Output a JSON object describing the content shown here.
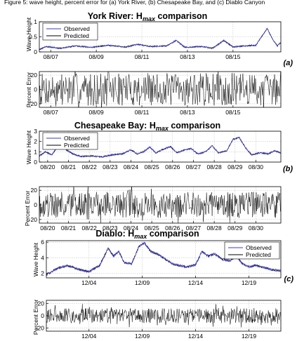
{
  "figure_header": "Figure 5: wave height, percent error for (a) York River, (b) Chesapeake Bay, and (c) Diablo Canyon",
  "chart_data": [
    {
      "id": "york-height",
      "type": "line",
      "title": "York River: H",
      "title_sub": "max",
      "title_tail": " comparison",
      "ylabel": "Wave Height",
      "ylim": [
        0,
        1
      ],
      "yticks": [
        0,
        0.5,
        1
      ],
      "xlim": [
        0,
        10.6
      ],
      "xticks": [
        {
          "x": 0.5,
          "label": "08/07"
        },
        {
          "x": 2.5,
          "label": "08/09"
        },
        {
          "x": 4.5,
          "label": "08/11"
        },
        {
          "x": 6.5,
          "label": "08/13"
        },
        {
          "x": 8.5,
          "label": "08/15"
        }
      ],
      "legend": "top-left",
      "series": [
        {
          "name": "Observed",
          "color": "#3a3ad6"
        },
        {
          "name": "Predicted",
          "color": "#000000"
        }
      ],
      "key_points": [
        [
          0,
          0.08
        ],
        [
          0.3,
          0.18
        ],
        [
          0.9,
          0.12
        ],
        [
          1.6,
          0.2
        ],
        [
          2.3,
          0.15
        ],
        [
          3.0,
          0.22
        ],
        [
          3.8,
          0.16
        ],
        [
          4.3,
          0.25
        ],
        [
          4.9,
          0.18
        ],
        [
          5.6,
          0.2
        ],
        [
          6.0,
          0.38
        ],
        [
          6.4,
          0.15
        ],
        [
          7.1,
          0.18
        ],
        [
          7.6,
          0.12
        ],
        [
          8.1,
          0.38
        ],
        [
          8.5,
          0.16
        ],
        [
          9.0,
          0.2
        ],
        [
          9.5,
          0.22
        ],
        [
          9.8,
          0.55
        ],
        [
          10.0,
          0.78
        ],
        [
          10.25,
          0.4
        ],
        [
          10.45,
          0.2
        ],
        [
          10.6,
          0.32
        ]
      ],
      "noise": 0.025,
      "label": "(a)"
    },
    {
      "id": "york-error",
      "type": "line",
      "ylabel": "Percent Error",
      "ylim": [
        -25,
        25
      ],
      "yticks": [
        -20,
        0,
        20
      ],
      "xlim": [
        0,
        10.6
      ],
      "xticks": [
        {
          "x": 0.5,
          "label": "08/07"
        },
        {
          "x": 2.5,
          "label": "08/09"
        },
        {
          "x": 4.5,
          "label": "08/11"
        },
        {
          "x": 6.5,
          "label": "08/13"
        },
        {
          "x": 8.5,
          "label": "08/15"
        }
      ],
      "color": "#000000",
      "samples": 420,
      "amplitude": 23,
      "seed": 7
    },
    {
      "id": "chesapeake-height",
      "type": "line",
      "title": "Chesapeake Bay: H",
      "title_sub": "max",
      "title_tail": " comparison",
      "ylabel": "Wave Height",
      "ylim": [
        0,
        3
      ],
      "yticks": [
        0,
        1,
        2,
        3
      ],
      "xlim": [
        0,
        11.6
      ],
      "xticks": [
        {
          "x": 0.4,
          "label": "08/20"
        },
        {
          "x": 1.4,
          "label": "08/21"
        },
        {
          "x": 2.4,
          "label": "08/22"
        },
        {
          "x": 3.4,
          "label": "08/23"
        },
        {
          "x": 4.4,
          "label": "08/24"
        },
        {
          "x": 5.4,
          "label": "08/25"
        },
        {
          "x": 6.4,
          "label": "08/26"
        },
        {
          "x": 7.4,
          "label": "08/27"
        },
        {
          "x": 8.4,
          "label": "08/28"
        },
        {
          "x": 9.4,
          "label": "08/29"
        },
        {
          "x": 10.4,
          "label": "08/30"
        }
      ],
      "legend": "top-left",
      "series": [
        {
          "name": "Observed",
          "color": "#3a3ad6"
        },
        {
          "name": "Predicted",
          "color": "#000000"
        }
      ],
      "key_points": [
        [
          0,
          0.6
        ],
        [
          0.3,
          1.0
        ],
        [
          0.6,
          0.7
        ],
        [
          0.9,
          1.5
        ],
        [
          1.1,
          1.8
        ],
        [
          1.3,
          1.2
        ],
        [
          1.6,
          0.8
        ],
        [
          2.0,
          0.55
        ],
        [
          2.5,
          0.6
        ],
        [
          3.0,
          0.5
        ],
        [
          3.5,
          0.7
        ],
        [
          4.0,
          0.8
        ],
        [
          4.4,
          1.2
        ],
        [
          4.7,
          0.8
        ],
        [
          5.0,
          1.0
        ],
        [
          5.3,
          1.45
        ],
        [
          5.6,
          0.9
        ],
        [
          6.0,
          1.3
        ],
        [
          6.3,
          1.5
        ],
        [
          6.6,
          0.9
        ],
        [
          7.0,
          1.2
        ],
        [
          7.3,
          1.3
        ],
        [
          7.6,
          0.8
        ],
        [
          8.0,
          1.0
        ],
        [
          8.3,
          1.6
        ],
        [
          8.6,
          0.9
        ],
        [
          9.0,
          1.1
        ],
        [
          9.3,
          2.2
        ],
        [
          9.6,
          2.4
        ],
        [
          9.9,
          1.4
        ],
        [
          10.2,
          0.7
        ],
        [
          10.6,
          0.9
        ],
        [
          11.0,
          0.8
        ],
        [
          11.3,
          1.1
        ],
        [
          11.6,
          0.9
        ]
      ],
      "noise": 0.08,
      "label": "(b)"
    },
    {
      "id": "chesapeake-error",
      "type": "line",
      "ylabel": "Percent Error",
      "ylim": [
        -25,
        25
      ],
      "yticks": [
        -20,
        0,
        20
      ],
      "xlim": [
        0,
        11.6
      ],
      "xticks": [
        {
          "x": 0.4,
          "label": "08/20"
        },
        {
          "x": 1.4,
          "label": "08/21"
        },
        {
          "x": 2.4,
          "label": "08/22"
        },
        {
          "x": 3.4,
          "label": "08/23"
        },
        {
          "x": 4.4,
          "label": "08/24"
        },
        {
          "x": 5.4,
          "label": "08/25"
        },
        {
          "x": 6.4,
          "label": "08/26"
        },
        {
          "x": 7.4,
          "label": "08/27"
        },
        {
          "x": 8.4,
          "label": "08/28"
        },
        {
          "x": 9.4,
          "label": "08/29"
        },
        {
          "x": 10.4,
          "label": "08/30"
        }
      ],
      "color": "#000000",
      "samples": 520,
      "amplitude": 18,
      "seed": 19
    },
    {
      "id": "diablo-height",
      "type": "line",
      "title": "Diablo: H",
      "title_sub": "max",
      "title_tail": " comparison",
      "ylabel": "Wave Height",
      "ylim": [
        1.4,
        6.2
      ],
      "yticks": [
        2,
        4,
        6
      ],
      "xlim": [
        0,
        22
      ],
      "xticks": [
        {
          "x": 4.0,
          "label": "12/04"
        },
        {
          "x": 9.0,
          "label": "12/09"
        },
        {
          "x": 14.0,
          "label": "12/14"
        },
        {
          "x": 19.0,
          "label": "12/19"
        }
      ],
      "legend": "top-right",
      "series": [
        {
          "name": "Observed",
          "color": "#3a3ad6"
        },
        {
          "name": "Predicted",
          "color": "#000000"
        }
      ],
      "key_points": [
        [
          0,
          1.8
        ],
        [
          1.0,
          2.6
        ],
        [
          2.0,
          3.0
        ],
        [
          3.0,
          2.5
        ],
        [
          4.0,
          2.2
        ],
        [
          5.0,
          3.0
        ],
        [
          5.8,
          5.2
        ],
        [
          6.3,
          4.2
        ],
        [
          6.8,
          4.8
        ],
        [
          7.3,
          3.4
        ],
        [
          8.0,
          3.2
        ],
        [
          8.7,
          5.5
        ],
        [
          9.2,
          5.9
        ],
        [
          9.8,
          4.8
        ],
        [
          10.5,
          4.4
        ],
        [
          11.2,
          3.8
        ],
        [
          11.8,
          3.2
        ],
        [
          12.5,
          3.0
        ],
        [
          13.2,
          2.8
        ],
        [
          14.0,
          3.1
        ],
        [
          14.6,
          4.8
        ],
        [
          15.2,
          4.2
        ],
        [
          15.8,
          4.5
        ],
        [
          16.5,
          3.8
        ],
        [
          17.2,
          3.6
        ],
        [
          17.8,
          4.2
        ],
        [
          18.4,
          3.2
        ],
        [
          19.0,
          2.8
        ],
        [
          19.6,
          3.0
        ],
        [
          20.3,
          2.8
        ],
        [
          21.0,
          2.5
        ],
        [
          22.0,
          2.3
        ]
      ],
      "noise": 0.16,
      "label": "(c)"
    },
    {
      "id": "diablo-error",
      "type": "line",
      "ylabel": "Percent Error",
      "ylim": [
        -25,
        25
      ],
      "yticks": [
        -20,
        0,
        20
      ],
      "xlim": [
        0,
        22
      ],
      "xticks": [
        {
          "x": 4.0,
          "label": "12/04"
        },
        {
          "x": 9.0,
          "label": "12/09"
        },
        {
          "x": 14.0,
          "label": "12/14"
        },
        {
          "x": 19.0,
          "label": "12/19"
        }
      ],
      "color": "#000000",
      "samples": 560,
      "amplitude": 12,
      "seed": 31
    }
  ]
}
